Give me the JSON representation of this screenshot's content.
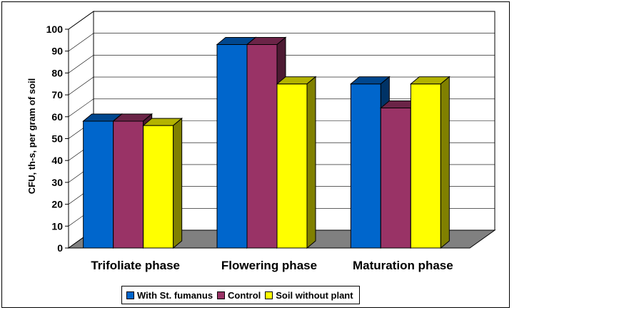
{
  "chart_data": {
    "type": "bar",
    "ylabel": "CFU, th-s,  per gram of soil",
    "xlabel": "",
    "ylim": [
      0,
      100
    ],
    "yticks": [
      0,
      10,
      20,
      30,
      40,
      50,
      60,
      70,
      80,
      90,
      100
    ],
    "categories": [
      "Trifoliate phase",
      "Flowering phase",
      "Maturation phase"
    ],
    "series": [
      {
        "name": "With St. fumanus",
        "color": "#0066cc",
        "values": [
          58,
          93,
          75
        ]
      },
      {
        "name": "Control",
        "color": "#993366",
        "values": [
          58,
          93,
          64
        ]
      },
      {
        "name": "Soil without plant",
        "color": "#ffff00",
        "values": [
          56,
          75,
          75
        ]
      }
    ],
    "grid": true,
    "legend_position": "bottom",
    "three_d": true
  }
}
